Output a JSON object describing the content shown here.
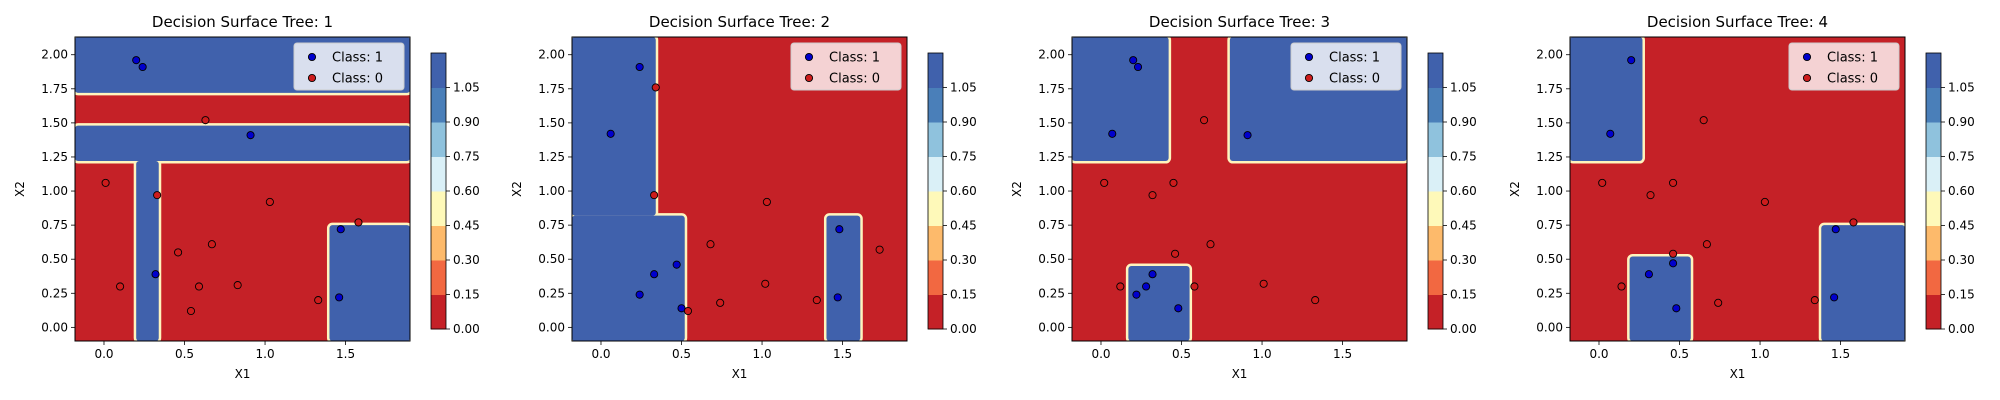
{
  "figure": {
    "background": "#ffffff"
  },
  "colors": {
    "class_1_region": "#4061AC",
    "class_0_region": "#C52127",
    "boundary": "#FFF4BE",
    "point_class_1": "#0000CD",
    "point_class_0": "#CD1C1C",
    "colorbar_bins": [
      "#C52127",
      "#F26841",
      "#FDBA6B",
      "#FEF9B9",
      "#DAF0F7",
      "#8FC2DD",
      "#4A7FB9",
      "#4061AC"
    ]
  },
  "chart_data": [
    {
      "type": "scatter",
      "title": "Decision Surface Tree: 1",
      "xlabel": "X1",
      "ylabel": "X2",
      "xlim": [
        -0.18,
        1.9
      ],
      "ylim": [
        -0.1,
        2.13
      ],
      "xticks": [
        0.0,
        0.5,
        1.0,
        1.5
      ],
      "xtick_labels": [
        "0.0",
        "0.5",
        "1.0",
        "1.5"
      ],
      "yticks": [
        0.0,
        0.25,
        0.5,
        0.75,
        1.0,
        1.25,
        1.5,
        1.75,
        2.0
      ],
      "ytick_labels": [
        "0.00",
        "0.25",
        "0.50",
        "0.75",
        "1.00",
        "1.25",
        "1.50",
        "1.75",
        "2.00"
      ],
      "legend": {
        "placement": "top-right",
        "entries": [
          "Class: 1",
          "Class: 0"
        ]
      },
      "colorbar": {
        "ticks": [
          "0.00",
          "0.15",
          "0.30",
          "0.45",
          "0.60",
          "0.75",
          "0.90",
          "1.05"
        ]
      },
      "class_1_regions": [
        [
          -0.18,
          1.72,
          1.9,
          2.13
        ],
        [
          -0.18,
          1.22,
          1.9,
          1.48
        ],
        [
          0.2,
          -0.1,
          0.34,
          1.22
        ],
        [
          1.4,
          -0.1,
          1.9,
          0.75
        ]
      ],
      "series": [
        {
          "name": "Class: 1",
          "x": [
            0.2,
            0.24,
            0.91,
            0.32,
            1.47,
            1.46
          ],
          "y": [
            1.96,
            1.91,
            1.41,
            0.39,
            0.72,
            0.22
          ]
        },
        {
          "name": "Class: 0",
          "x": [
            0.63,
            0.01,
            0.33,
            1.03,
            1.58,
            0.67,
            0.46,
            0.1,
            0.59,
            0.83,
            0.54,
            1.33
          ],
          "y": [
            1.52,
            1.06,
            0.97,
            0.92,
            0.77,
            0.61,
            0.55,
            0.3,
            0.3,
            0.31,
            0.12,
            0.2
          ]
        }
      ]
    },
    {
      "type": "scatter",
      "title": "Decision Surface Tree: 2",
      "xlabel": "X1",
      "ylabel": "X2",
      "xlim": [
        -0.18,
        1.9
      ],
      "ylim": [
        -0.1,
        2.13
      ],
      "xticks": [
        0.0,
        0.5,
        1.0,
        1.5
      ],
      "xtick_labels": [
        "0.0",
        "0.5",
        "1.0",
        "1.5"
      ],
      "yticks": [
        0.0,
        0.25,
        0.5,
        0.75,
        1.0,
        1.25,
        1.5,
        1.75,
        2.0
      ],
      "ytick_labels": [
        "0.00",
        "0.25",
        "0.50",
        "0.75",
        "1.00",
        "1.25",
        "1.50",
        "1.75",
        "2.00"
      ],
      "legend": {
        "placement": "top-right",
        "entries": [
          "Class: 1",
          "Class: 0"
        ]
      },
      "colorbar": {
        "ticks": [
          "0.00",
          "0.15",
          "0.30",
          "0.45",
          "0.60",
          "0.75",
          "0.90",
          "1.05"
        ]
      },
      "class_1_regions": [
        [
          -0.18,
          0.82,
          0.34,
          2.13
        ],
        [
          -0.18,
          -0.1,
          0.52,
          0.82
        ],
        [
          1.4,
          -0.1,
          1.61,
          0.82
        ]
      ],
      "series": [
        {
          "name": "Class: 1",
          "x": [
            0.24,
            0.06,
            0.33,
            0.47,
            0.24,
            0.5,
            1.48,
            1.47
          ],
          "y": [
            1.91,
            1.42,
            0.39,
            0.46,
            0.24,
            0.14,
            0.72,
            0.22
          ]
        },
        {
          "name": "Class: 0",
          "x": [
            0.34,
            0.33,
            1.03,
            0.68,
            1.73,
            1.02,
            0.74,
            1.34,
            0.54
          ],
          "y": [
            1.76,
            0.97,
            0.92,
            0.61,
            0.57,
            0.32,
            0.18,
            0.2,
            0.12
          ]
        }
      ]
    },
    {
      "type": "scatter",
      "title": "Decision Surface Tree: 3",
      "xlabel": "X1",
      "ylabel": "X2",
      "xlim": [
        -0.18,
        1.9
      ],
      "ylim": [
        -0.1,
        2.13
      ],
      "xticks": [
        0.0,
        0.5,
        1.0,
        1.5
      ],
      "xtick_labels": [
        "0.0",
        "0.5",
        "1.0",
        "1.5"
      ],
      "yticks": [
        0.0,
        0.25,
        0.5,
        0.75,
        1.0,
        1.25,
        1.5,
        1.75,
        2.0
      ],
      "ytick_labels": [
        "0.00",
        "0.25",
        "0.50",
        "0.75",
        "1.00",
        "1.25",
        "1.50",
        "1.75",
        "2.00"
      ],
      "legend": {
        "placement": "top-right",
        "entries": [
          "Class: 1",
          "Class: 0"
        ]
      },
      "colorbar": {
        "ticks": [
          "0.00",
          "0.15",
          "0.30",
          "0.45",
          "0.60",
          "0.75",
          "0.90",
          "1.05"
        ]
      },
      "class_1_regions": [
        [
          -0.18,
          1.22,
          0.42,
          2.13
        ],
        [
          0.8,
          1.22,
          1.9,
          2.13
        ],
        [
          0.17,
          -0.1,
          0.55,
          0.45
        ]
      ],
      "series": [
        {
          "name": "Class: 1",
          "x": [
            0.2,
            0.23,
            0.07,
            0.91,
            0.28,
            0.32,
            0.22,
            0.48
          ],
          "y": [
            1.96,
            1.91,
            1.42,
            1.41,
            0.3,
            0.39,
            0.24,
            0.14
          ]
        },
        {
          "name": "Class: 0",
          "x": [
            0.64,
            0.02,
            0.32,
            0.45,
            0.46,
            0.68,
            0.58,
            1.01,
            1.33,
            0.12
          ],
          "y": [
            1.52,
            1.06,
            0.97,
            1.06,
            0.54,
            0.61,
            0.3,
            0.32,
            0.2,
            0.3
          ]
        }
      ]
    },
    {
      "type": "scatter",
      "title": "Decision Surface Tree: 4",
      "xlabel": "X1",
      "ylabel": "X2",
      "xlim": [
        -0.18,
        1.9
      ],
      "ylim": [
        -0.1,
        2.13
      ],
      "xticks": [
        0.0,
        0.5,
        1.0,
        1.5
      ],
      "xtick_labels": [
        "0.0",
        "0.5",
        "1.0",
        "1.5"
      ],
      "yticks": [
        0.0,
        0.25,
        0.5,
        0.75,
        1.0,
        1.25,
        1.5,
        1.75,
        2.0
      ],
      "ytick_labels": [
        "0.00",
        "0.25",
        "0.50",
        "0.75",
        "1.00",
        "1.25",
        "1.50",
        "1.75",
        "2.00"
      ],
      "legend": {
        "placement": "top-right",
        "entries": [
          "Class: 1",
          "Class: 0"
        ]
      },
      "colorbar": {
        "ticks": [
          "0.00",
          "0.15",
          "0.30",
          "0.45",
          "0.60",
          "0.75",
          "0.90",
          "1.05"
        ]
      },
      "class_1_regions": [
        [
          -0.18,
          1.22,
          0.27,
          2.13
        ],
        [
          0.19,
          -0.1,
          0.57,
          0.52
        ],
        [
          1.38,
          -0.1,
          1.9,
          0.75
        ]
      ],
      "series": [
        {
          "name": "Class: 1",
          "x": [
            0.2,
            0.07,
            0.31,
            0.46,
            0.48,
            1.47,
            1.46
          ],
          "y": [
            1.96,
            1.42,
            0.39,
            0.47,
            0.14,
            0.72,
            0.22
          ]
        },
        {
          "name": "Class: 0",
          "x": [
            0.65,
            0.02,
            0.32,
            0.46,
            1.03,
            0.46,
            0.67,
            1.58,
            0.14,
            0.74,
            1.34
          ],
          "y": [
            1.52,
            1.06,
            0.97,
            1.06,
            0.92,
            0.54,
            0.61,
            0.77,
            0.3,
            0.18,
            0.2
          ]
        }
      ]
    }
  ]
}
